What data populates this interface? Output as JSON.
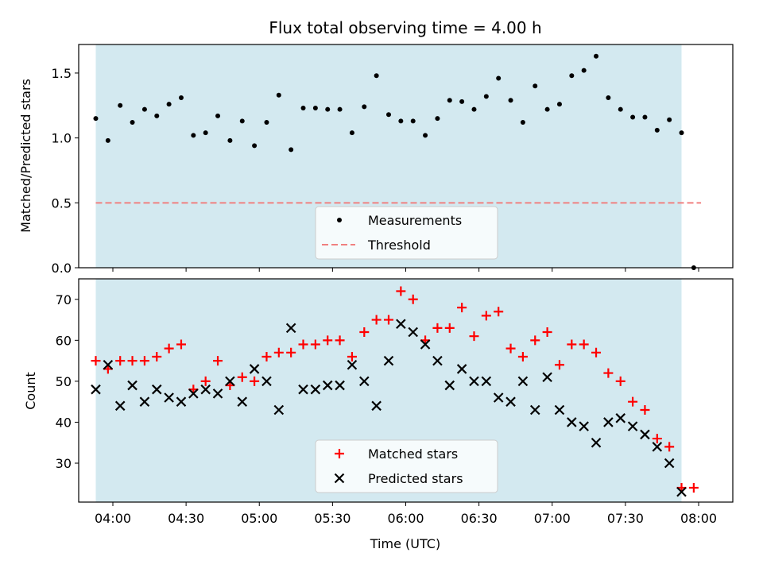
{
  "title": "Flux total observing time = 4.00 h",
  "x_tick_labels": [
    "04:00",
    "04:30",
    "05:00",
    "05:30",
    "06:00",
    "06:30",
    "07:00",
    "07:30",
    "08:00"
  ],
  "colors": {
    "shade": "#d3e9f0",
    "measurements": "#000000",
    "threshold": "#f08080",
    "matched": "#ff0000",
    "predicted": "#000000"
  },
  "chart_data": [
    {
      "type": "scatter",
      "ylabel": "Matched/Predicted stars",
      "ylim": [
        0,
        1.72
      ],
      "y_ticks": [
        "0.0",
        "0.5",
        "1.0",
        "1.5"
      ],
      "legend": "bottom-center",
      "shaded_span": {
        "start": "03:53",
        "end": "07:53"
      },
      "threshold": {
        "name": "Threshold",
        "value": 0.5,
        "from": "03:53",
        "to": "08:01"
      },
      "series": [
        {
          "name": "Measurements",
          "x": [
            "03:53",
            "03:58",
            "04:03",
            "04:08",
            "04:13",
            "04:18",
            "04:23",
            "04:28",
            "04:33",
            "04:38",
            "04:43",
            "04:48",
            "04:53",
            "04:58",
            "05:03",
            "05:08",
            "05:13",
            "05:18",
            "05:23",
            "05:28",
            "05:33",
            "05:38",
            "05:43",
            "05:48",
            "05:53",
            "05:58",
            "06:03",
            "06:08",
            "06:13",
            "06:18",
            "06:23",
            "06:28",
            "06:33",
            "06:38",
            "06:43",
            "06:48",
            "06:53",
            "06:58",
            "07:03",
            "07:08",
            "07:13",
            "07:18",
            "07:23",
            "07:28",
            "07:33",
            "07:38",
            "07:43",
            "07:48",
            "07:53",
            "07:58"
          ],
          "y": [
            1.15,
            0.98,
            1.25,
            1.12,
            1.22,
            1.17,
            1.26,
            1.31,
            1.02,
            1.04,
            1.17,
            0.98,
            1.13,
            0.94,
            1.12,
            1.33,
            0.91,
            1.23,
            1.23,
            1.22,
            1.22,
            1.04,
            1.24,
            1.48,
            1.18,
            1.13,
            1.13,
            1.02,
            1.15,
            1.29,
            1.28,
            1.22,
            1.32,
            1.46,
            1.29,
            1.12,
            1.4,
            1.22,
            1.26,
            1.48,
            1.52,
            1.63,
            1.31,
            1.22,
            1.16,
            1.16,
            1.06,
            1.14,
            1.04,
            0.0
          ]
        }
      ]
    },
    {
      "type": "scatter",
      "xlabel": "Time (UTC)",
      "ylabel": "Count",
      "ylim": [
        20.5,
        75
      ],
      "y_ticks": [
        "30",
        "40",
        "50",
        "60",
        "70"
      ],
      "legend": "bottom-center",
      "shaded_span": {
        "start": "03:53",
        "end": "07:53"
      },
      "series": [
        {
          "name": "Matched stars",
          "x": [
            "03:53",
            "03:58",
            "04:03",
            "04:08",
            "04:13",
            "04:18",
            "04:23",
            "04:28",
            "04:33",
            "04:38",
            "04:43",
            "04:48",
            "04:53",
            "04:58",
            "05:03",
            "05:08",
            "05:13",
            "05:18",
            "05:23",
            "05:28",
            "05:33",
            "05:38",
            "05:43",
            "05:48",
            "05:53",
            "05:58",
            "06:03",
            "06:08",
            "06:13",
            "06:18",
            "06:23",
            "06:28",
            "06:33",
            "06:38",
            "06:43",
            "06:48",
            "06:53",
            "06:58",
            "07:03",
            "07:08",
            "07:13",
            "07:18",
            "07:23",
            "07:28",
            "07:33",
            "07:38",
            "07:43",
            "07:48",
            "07:53",
            "07:58"
          ],
          "y": [
            55,
            53,
            55,
            55,
            55,
            56,
            58,
            59,
            48,
            50,
            55,
            49,
            51,
            50,
            56,
            57,
            57,
            59,
            59,
            60,
            60,
            56,
            62,
            65,
            65,
            72,
            70,
            60,
            63,
            63,
            68,
            61,
            66,
            67,
            58,
            56,
            60,
            62,
            54,
            59,
            59,
            57,
            52,
            50,
            45,
            43,
            36,
            34,
            24,
            24
          ]
        },
        {
          "name": "Predicted stars",
          "x": [
            "03:53",
            "03:58",
            "04:03",
            "04:08",
            "04:13",
            "04:18",
            "04:23",
            "04:28",
            "04:33",
            "04:38",
            "04:43",
            "04:48",
            "04:53",
            "04:58",
            "05:03",
            "05:08",
            "05:13",
            "05:18",
            "05:23",
            "05:28",
            "05:33",
            "05:38",
            "05:43",
            "05:48",
            "05:53",
            "05:58",
            "06:03",
            "06:08",
            "06:13",
            "06:18",
            "06:23",
            "06:28",
            "06:33",
            "06:38",
            "06:43",
            "06:48",
            "06:53",
            "06:58",
            "07:03",
            "07:08",
            "07:13",
            "07:18",
            "07:23",
            "07:28",
            "07:33",
            "07:38",
            "07:43",
            "07:48",
            "07:53"
          ],
          "y": [
            48,
            54,
            44,
            49,
            45,
            48,
            46,
            45,
            47,
            48,
            47,
            50,
            45,
            53,
            50,
            43,
            63,
            48,
            48,
            49,
            49,
            54,
            50,
            44,
            55,
            64,
            62,
            59,
            55,
            49,
            53,
            50,
            50,
            46,
            45,
            50,
            43,
            51,
            43,
            40,
            39,
            35,
            40,
            41,
            39,
            37,
            34,
            30,
            23
          ]
        }
      ]
    }
  ]
}
